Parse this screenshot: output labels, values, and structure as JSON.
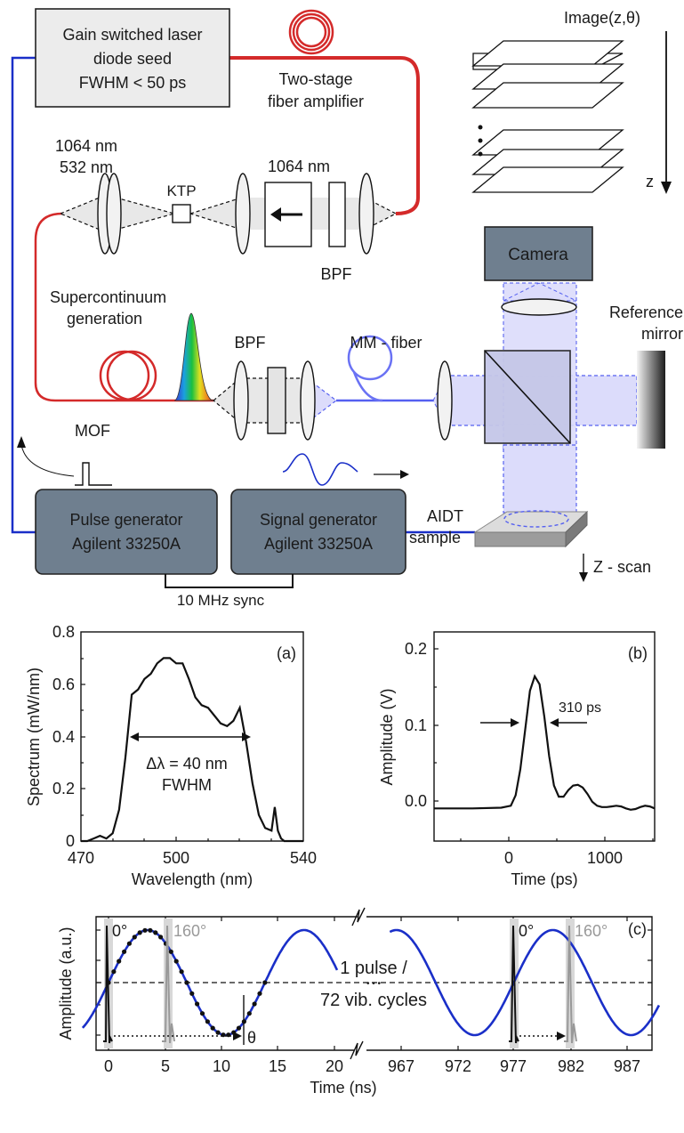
{
  "setup": {
    "laser_box": [
      "Gain switched laser",
      "diode seed",
      "FWHM < 50 ps"
    ],
    "amplifier": [
      "Two-stage",
      "fiber amplifier"
    ],
    "wl_left": [
      "1064 nm",
      "532 nm"
    ],
    "ktp": "KTP",
    "wl_right": "1064 nm",
    "bpf_top": "BPF",
    "camera": "Camera",
    "reference": [
      "Reference",
      "mirror"
    ],
    "image_label": "Image(z,θ)",
    "z_axis": "z",
    "supercontinuum": [
      "Supercontinuum",
      "generation"
    ],
    "bpf_mid": "BPF",
    "mm_fiber": "MM - fiber",
    "mof": "MOF",
    "pulse_gen": [
      "Pulse generator",
      "Agilent 33250A"
    ],
    "signal_gen": [
      "Signal generator",
      "Agilent 33250A"
    ],
    "aidt": [
      "AIDT",
      "sample"
    ],
    "zscan": "Z - scan",
    "sync": "10 MHz sync",
    "colors": {
      "fiber_red": "#d42a2a",
      "cable_blue": "#1a2fc8",
      "beam_blue": "#5560f0",
      "box_gray": "#6f7f8f",
      "laser_box": "#ececec"
    }
  },
  "chart_data": [
    {
      "panel": "(a)",
      "type": "line",
      "xlabel": "Wavelength (nm)",
      "ylabel": "Spectrum (mW/nm)",
      "xlim": [
        470,
        540
      ],
      "ylim": [
        0,
        0.8
      ],
      "xticks": [
        "470",
        "500",
        "540"
      ],
      "yticks": [
        "0",
        "0.2",
        "0.4",
        "0.6",
        "0.8"
      ],
      "annotation": [
        "Δλ = 40 nm",
        "FWHM"
      ],
      "x": [
        470,
        472,
        474,
        476,
        478,
        480,
        482,
        484,
        486,
        488,
        490,
        492,
        494,
        496,
        498,
        500,
        502,
        504,
        506,
        508,
        510,
        512,
        514,
        516,
        518,
        520,
        522,
        524,
        526,
        528,
        530,
        531,
        532,
        533,
        534,
        535,
        536,
        537,
        538,
        540
      ],
      "y": [
        0,
        0.0,
        0.01,
        0.02,
        0.01,
        0.03,
        0.12,
        0.32,
        0.56,
        0.58,
        0.62,
        0.64,
        0.68,
        0.7,
        0.7,
        0.68,
        0.68,
        0.62,
        0.55,
        0.52,
        0.51,
        0.48,
        0.45,
        0.44,
        0.46,
        0.51,
        0.38,
        0.22,
        0.1,
        0.05,
        0.04,
        0.13,
        0.04,
        0.01,
        0.0,
        0.0,
        0.0,
        0.0,
        0.0,
        0.0
      ]
    },
    {
      "panel": "(b)",
      "type": "line",
      "xlabel": "Time (ps)",
      "ylabel": "Amplitude (V)",
      "xlim": [
        -800,
        1500
      ],
      "ylim": [
        -0.05,
        0.27
      ],
      "xticks": [
        "0",
        "1000"
      ],
      "yticks": [
        "0.0",
        "0.1",
        "0.2"
      ],
      "annotation": "310 ps",
      "x": [
        -800,
        -400,
        -100,
        0,
        50,
        100,
        150,
        200,
        250,
        300,
        350,
        400,
        450,
        500,
        550,
        600,
        650,
        700,
        750,
        800,
        850,
        900,
        950,
        1000,
        1050,
        1100,
        1150,
        1200,
        1250,
        1300,
        1350,
        1400,
        1450,
        1500
      ],
      "y": [
        0,
        0,
        0.001,
        0.004,
        0.02,
        0.06,
        0.12,
        0.18,
        0.202,
        0.19,
        0.14,
        0.08,
        0.035,
        0.018,
        0.018,
        0.028,
        0.035,
        0.036,
        0.032,
        0.022,
        0.01,
        0.004,
        0.002,
        0.002,
        0.003,
        0.004,
        0.003,
        0.0,
        -0.002,
        -0.001,
        0.002,
        0.004,
        0.003,
        0.0
      ]
    },
    {
      "panel": "(c)",
      "type": "line",
      "xlabel": "Time (ns)",
      "ylabel": "Amplitude (a.u.)",
      "xticks_left": [
        "0",
        "5",
        "10",
        "15",
        "20"
      ],
      "xticks_right": [
        "967",
        "972",
        "977",
        "982",
        "987"
      ],
      "angles": [
        "0°",
        "160°",
        "0°",
        "160°"
      ],
      "theta": "θ",
      "annotation": [
        "1 pulse /",
        "72 vib. cycles"
      ],
      "ellipsis": "• • •",
      "sine_period_ns": 13.89
    }
  ]
}
